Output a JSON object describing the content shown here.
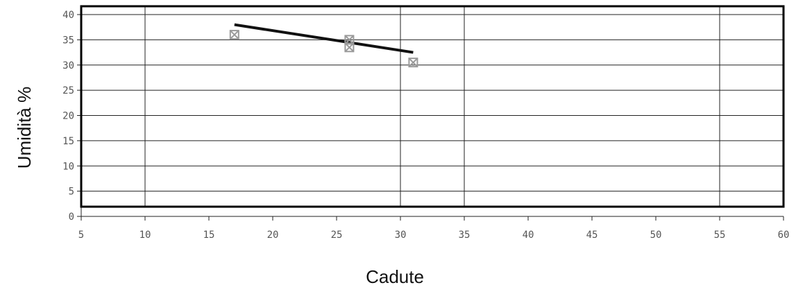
{
  "chart_data": {
    "type": "scatter",
    "title": "",
    "xlabel": "Cadute",
    "ylabel": "Umidità %",
    "xlim": [
      5,
      60
    ],
    "ylim": [
      0,
      40
    ],
    "x_ticks": [
      5,
      10,
      15,
      20,
      25,
      30,
      35,
      40,
      45,
      50,
      55,
      60
    ],
    "y_ticks": [
      0,
      5,
      10,
      15,
      20,
      25,
      30,
      35,
      40
    ],
    "x_grid_lines": [
      10,
      30,
      35,
      55
    ],
    "grid": true,
    "legend": "none",
    "series": [
      {
        "marker": "x-square",
        "color": "#9a9a9a",
        "x": [
          17,
          26,
          26,
          31
        ],
        "y": [
          36,
          33.5,
          35,
          30.5
        ]
      }
    ],
    "trendline": {
      "color": "#111111",
      "x": [
        17,
        31
      ],
      "y": [
        38,
        32.5
      ]
    }
  }
}
